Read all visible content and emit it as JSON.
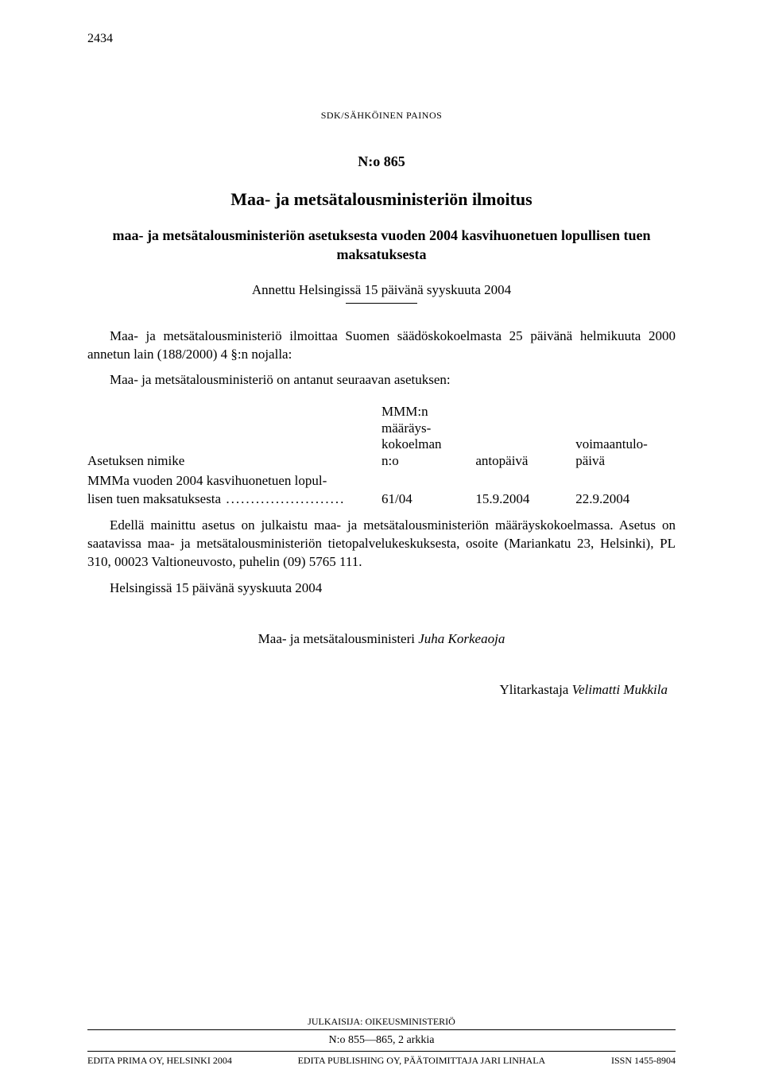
{
  "page_number": "2434",
  "stamp": "SDK/SÄHKÖINEN PAINOS",
  "doc_number": "N:o 865",
  "title": "Maa- ja metsätalousministeriön ilmoitus",
  "subtitle": "maa- ja metsätalousministeriön asetuksesta vuoden 2004 kasvihuonetuen lopullisen tuen maksatuksesta",
  "given_at": "Annettu Helsingissä 15 päivänä syyskuuta 2004",
  "para1": "Maa- ja metsätalousministeriö ilmoittaa Suomen säädöskokoelmasta 25 päivänä helmikuuta 2000 annetun lain (188/2000) 4 §:n nojalla:",
  "para2": "Maa- ja metsätalousministeriö on antanut seuraavan asetuksen:",
  "table": {
    "headers": {
      "c1": "Asetuksen nimike",
      "c2_line1": "MMM:n",
      "c2_line2": "määräys-",
      "c2_line3": "kokoelman",
      "c2_line4": "n:o",
      "c3": "antopäivä",
      "c4_line1": "voimaantulo-",
      "c4_line2": "päivä"
    },
    "row": {
      "name_line1": "MMMa vuoden 2004 kasvihuonetuen lopul-",
      "name_line2": "lisen tuen maksatuksesta",
      "no": "61/04",
      "anto": "15.9.2004",
      "voima": "22.9.2004"
    }
  },
  "para3": "Edellä mainittu asetus on julkaistu maa- ja metsätalousministeriön määräyskokoelmassa. Asetus on saatavissa maa- ja metsätalousministeriön tietopalvelukeskuksesta, osoite (Mariankatu 23, Helsinki), PL 310, 00023 Valtioneuvosto, puhelin (09) 5765 111.",
  "para4": "Helsingissä 15 päivänä syyskuuta 2004",
  "signer_title": "Maa- ja metsätalousministeri ",
  "signer_name": "Juha Korkeaoja",
  "reviewer_title": "Ylitarkastaja ",
  "reviewer_name": "Velimatti Mukkila",
  "footer": {
    "publisher": "JULKAISIJA: OIKEUSMINISTERIÖ",
    "range": "N:o 855—865, 2 arkkia",
    "left": "EDITA PRIMA OY, HELSINKI 2004",
    "center": "EDITA PUBLISHING OY, PÄÄTOIMITTAJA JARI LINHALA",
    "right": "ISSN 1455-8904"
  }
}
